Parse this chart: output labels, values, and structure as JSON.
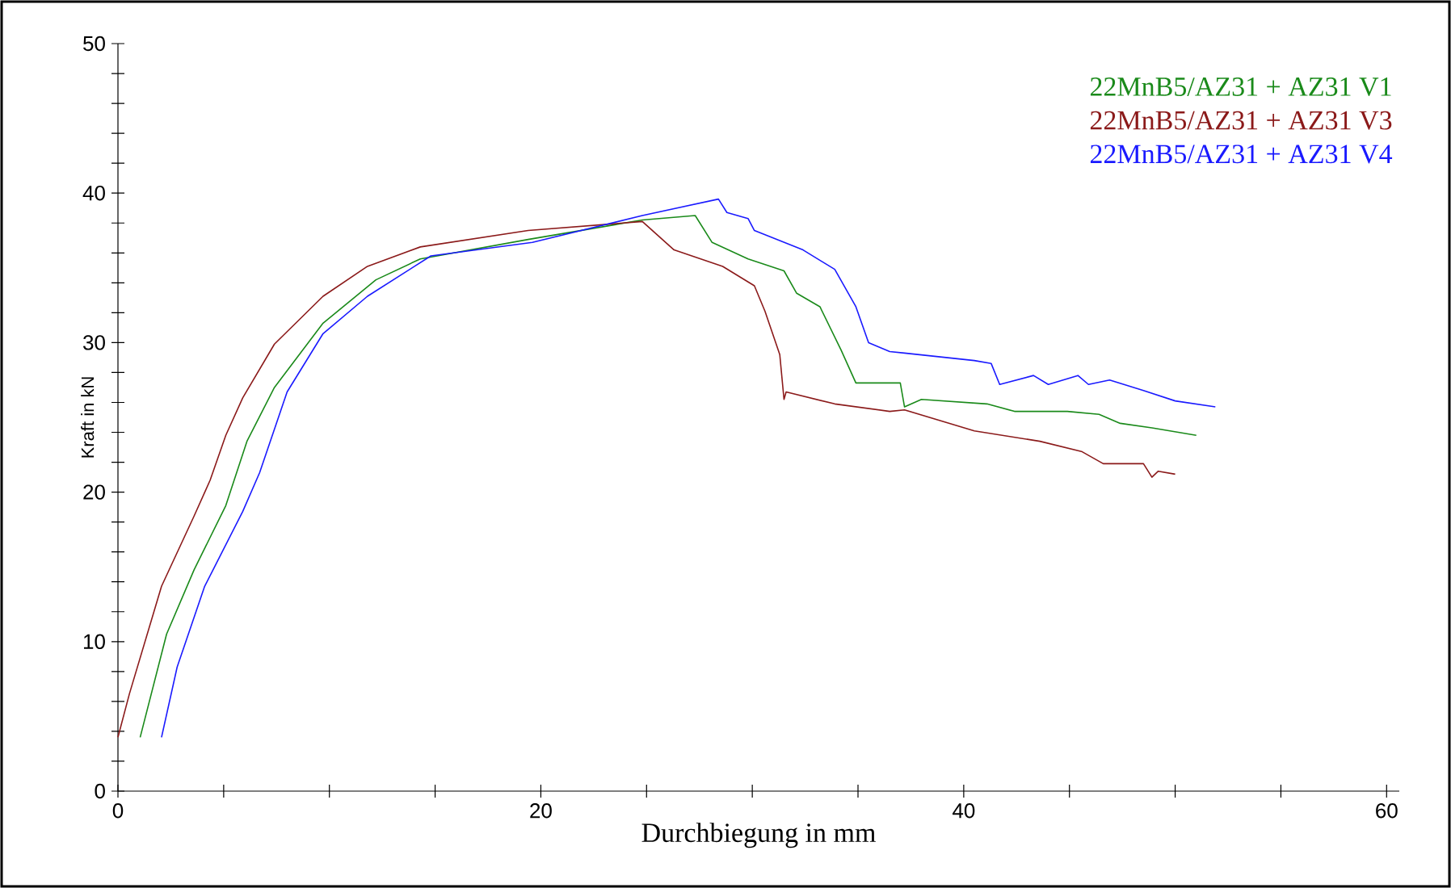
{
  "chart_data": {
    "type": "line",
    "xlabel": "Durchbiegung in mm",
    "ylabel": "Kraft in kN",
    "xlim": [
      0,
      60.6
    ],
    "ylim": [
      0,
      50
    ],
    "xticks": [
      0,
      {
        "value": 5,
        "label": null
      },
      {
        "value": 10,
        "label": null
      },
      {
        "value": 15,
        "label": null
      },
      20,
      {
        "value": 25,
        "label": null
      },
      {
        "value": 30,
        "label": null
      },
      {
        "value": 35,
        "label": null
      },
      40,
      {
        "value": 45,
        "label": null
      },
      {
        "value": 50,
        "label": null
      },
      {
        "value": 55,
        "label": null
      },
      60
    ],
    "yticks": [
      0,
      {
        "value": 2,
        "label": null
      },
      {
        "value": 4,
        "label": null
      },
      {
        "value": 6,
        "label": null
      },
      {
        "value": 8,
        "label": null
      },
      10,
      {
        "value": 12,
        "label": null
      },
      {
        "value": 14,
        "label": null
      },
      {
        "value": 16,
        "label": null
      },
      {
        "value": 18,
        "label": null
      },
      20,
      {
        "value": 22,
        "label": null
      },
      {
        "value": 24,
        "label": null
      },
      {
        "value": 26,
        "label": null
      },
      {
        "value": 28,
        "label": null
      },
      30,
      {
        "value": 32,
        "label": null
      },
      {
        "value": 34,
        "label": null
      },
      {
        "value": 36,
        "label": null
      },
      {
        "value": 38,
        "label": null
      },
      40,
      {
        "value": 42,
        "label": null
      },
      {
        "value": 44,
        "label": null
      },
      {
        "value": 46,
        "label": null
      },
      {
        "value": 48,
        "label": null
      },
      50
    ],
    "grid": false,
    "legend": "top right",
    "marker": "none",
    "line_style": "solid",
    "series": [
      {
        "name": "22MnB5/AZ31 + AZ31 V1",
        "color": "#1a8a1a",
        "x": [
          1.05,
          2.3,
          3.6,
          5.1,
          6.1,
          7.4,
          9.7,
          12.2,
          14.3,
          19.4,
          24.8,
          27.3,
          28.1,
          29.8,
          31.5,
          32.1,
          33.2,
          34.2,
          34.9,
          37.0,
          37.2,
          38.0,
          41.1,
          42.4,
          44.9,
          46.4,
          47.4,
          48.9,
          51.0
        ],
        "values": [
          3.6,
          10.5,
          14.8,
          19.1,
          23.4,
          27.0,
          31.3,
          34.2,
          35.6,
          36.9,
          38.2,
          38.5,
          36.7,
          35.6,
          34.8,
          33.3,
          32.4,
          29.5,
          27.3,
          27.3,
          25.7,
          26.2,
          25.9,
          25.4,
          25.4,
          25.2,
          24.6,
          24.3,
          23.8
        ]
      },
      {
        "name": "22MnB5/AZ31 + AZ31 V3",
        "color": "#8b1a1a",
        "x": [
          0,
          0.54,
          2.06,
          3.6,
          4.36,
          5.1,
          5.9,
          7.4,
          9.7,
          11.8,
          14.3,
          19.4,
          24.8,
          26.3,
          28.6,
          30.1,
          30.6,
          31.3,
          31.5,
          31.6,
          33.9,
          36.5,
          37.2,
          40.5,
          43.6,
          45.6,
          46.6,
          48.5,
          48.9,
          49.2,
          50.0
        ],
        "values": [
          3.6,
          6.5,
          13.7,
          18.4,
          20.8,
          23.8,
          26.3,
          29.9,
          33.1,
          35.1,
          36.4,
          37.5,
          38.1,
          36.2,
          35.1,
          33.8,
          32.1,
          29.2,
          26.2,
          26.7,
          25.9,
          25.4,
          25.5,
          24.1,
          23.4,
          22.7,
          21.9,
          21.9,
          21.0,
          21.4,
          21.2
        ]
      },
      {
        "name": "22MnB5/AZ31 + AZ31 V4",
        "color": "#1a1aff",
        "x": [
          2.06,
          2.8,
          4.1,
          5.9,
          6.7,
          8.0,
          9.7,
          11.8,
          14.8,
          19.6,
          24.8,
          28.4,
          28.8,
          29.8,
          30.1,
          32.4,
          33.9,
          34.9,
          35.5,
          36.5,
          37.2,
          40.5,
          41.3,
          41.7,
          43.3,
          44.0,
          45.4,
          45.9,
          46.9,
          48.5,
          50.0,
          51.9
        ],
        "values": [
          3.6,
          8.3,
          13.7,
          18.7,
          21.3,
          26.7,
          30.6,
          33.1,
          35.8,
          36.7,
          38.5,
          39.6,
          38.7,
          38.3,
          37.5,
          36.2,
          34.9,
          32.4,
          30.0,
          29.4,
          29.3,
          28.8,
          28.6,
          27.2,
          27.8,
          27.2,
          27.8,
          27.2,
          27.5,
          26.8,
          26.1,
          25.7
        ]
      }
    ]
  }
}
